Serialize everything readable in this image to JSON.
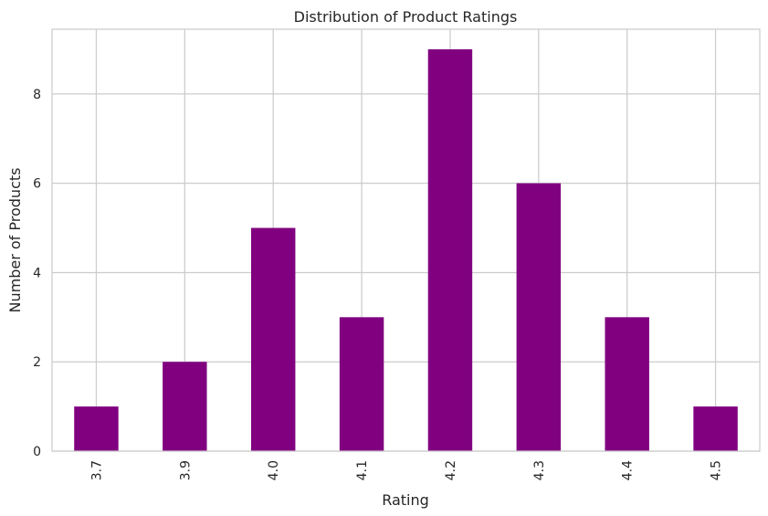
{
  "chart_data": {
    "type": "bar",
    "title": "Distribution of Product Ratings",
    "xlabel": "Rating",
    "ylabel": "Number of Products",
    "categories": [
      "3.7",
      "3.9",
      "4.0",
      "4.1",
      "4.2",
      "4.3",
      "4.4",
      "4.5"
    ],
    "values": [
      1,
      2,
      5,
      3,
      9,
      6,
      3,
      1
    ],
    "ylim": [
      0,
      9.45
    ],
    "yticks": [
      0,
      2,
      4,
      6,
      8
    ],
    "grid": true,
    "bar_color": "#800080",
    "grid_color": "#cccccc",
    "spine_color": "#cccccc",
    "text_color": "#262626"
  }
}
